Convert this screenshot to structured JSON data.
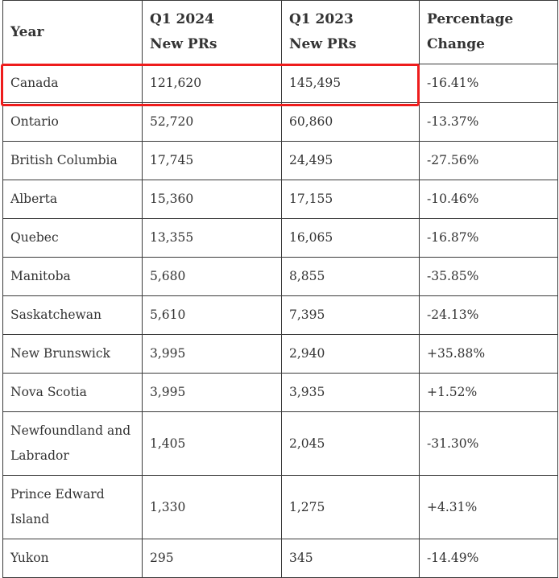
{
  "table": {
    "headers": [
      "Year",
      "Q1 2024 New PRs",
      "Q1 2023 New PRs",
      "Percentage Change"
    ],
    "header_lines": [
      [
        "Year"
      ],
      [
        "Q1 2024",
        "New PRs"
      ],
      [
        "Q1 2023",
        "New PRs"
      ],
      [
        "Percentage",
        "Change"
      ]
    ],
    "rows": [
      {
        "lines": [
          "Canada"
        ],
        "q1_2024": "121,620",
        "q1_2023": "145,495",
        "change": "-16.41%"
      },
      {
        "lines": [
          "Ontario"
        ],
        "q1_2024": "52,720",
        "q1_2023": "60,860",
        "change": "-13.37%"
      },
      {
        "lines": [
          "British Columbia"
        ],
        "q1_2024": "17,745",
        "q1_2023": "24,495",
        "change": "-27.56%"
      },
      {
        "lines": [
          "Alberta"
        ],
        "q1_2024": "15,360",
        "q1_2023": "17,155",
        "change": "-10.46%"
      },
      {
        "lines": [
          "Quebec"
        ],
        "q1_2024": "13,355",
        "q1_2023": "16,065",
        "change": "-16.87%"
      },
      {
        "lines": [
          "Manitoba"
        ],
        "q1_2024": "5,680",
        "q1_2023": "8,855",
        "change": "-35.85%"
      },
      {
        "lines": [
          "Saskatchewan"
        ],
        "q1_2024": "5,610",
        "q1_2023": "7,395",
        "change": "-24.13%"
      },
      {
        "lines": [
          "New Brunswick"
        ],
        "q1_2024": "3,995",
        "q1_2023": "2,940",
        "change": "+35.88%"
      },
      {
        "lines": [
          "Nova Scotia"
        ],
        "q1_2024": "3,995",
        "q1_2023": "3,935",
        "change": "+1.52%"
      },
      {
        "lines": [
          "Newfoundland and",
          "Labrador"
        ],
        "q1_2024": "1,405",
        "q1_2023": "2,045",
        "change": "-31.30%"
      },
      {
        "lines": [
          "Prince Edward",
          "Island"
        ],
        "q1_2024": "1,330",
        "q1_2023": "1,275",
        "change": "+4.31%"
      },
      {
        "lines": [
          "Yukon"
        ],
        "q1_2024": "295",
        "q1_2023": "345",
        "change": "-14.49%"
      }
    ]
  },
  "highlight": {
    "row": "Canada",
    "color": "#ee1c1c"
  }
}
